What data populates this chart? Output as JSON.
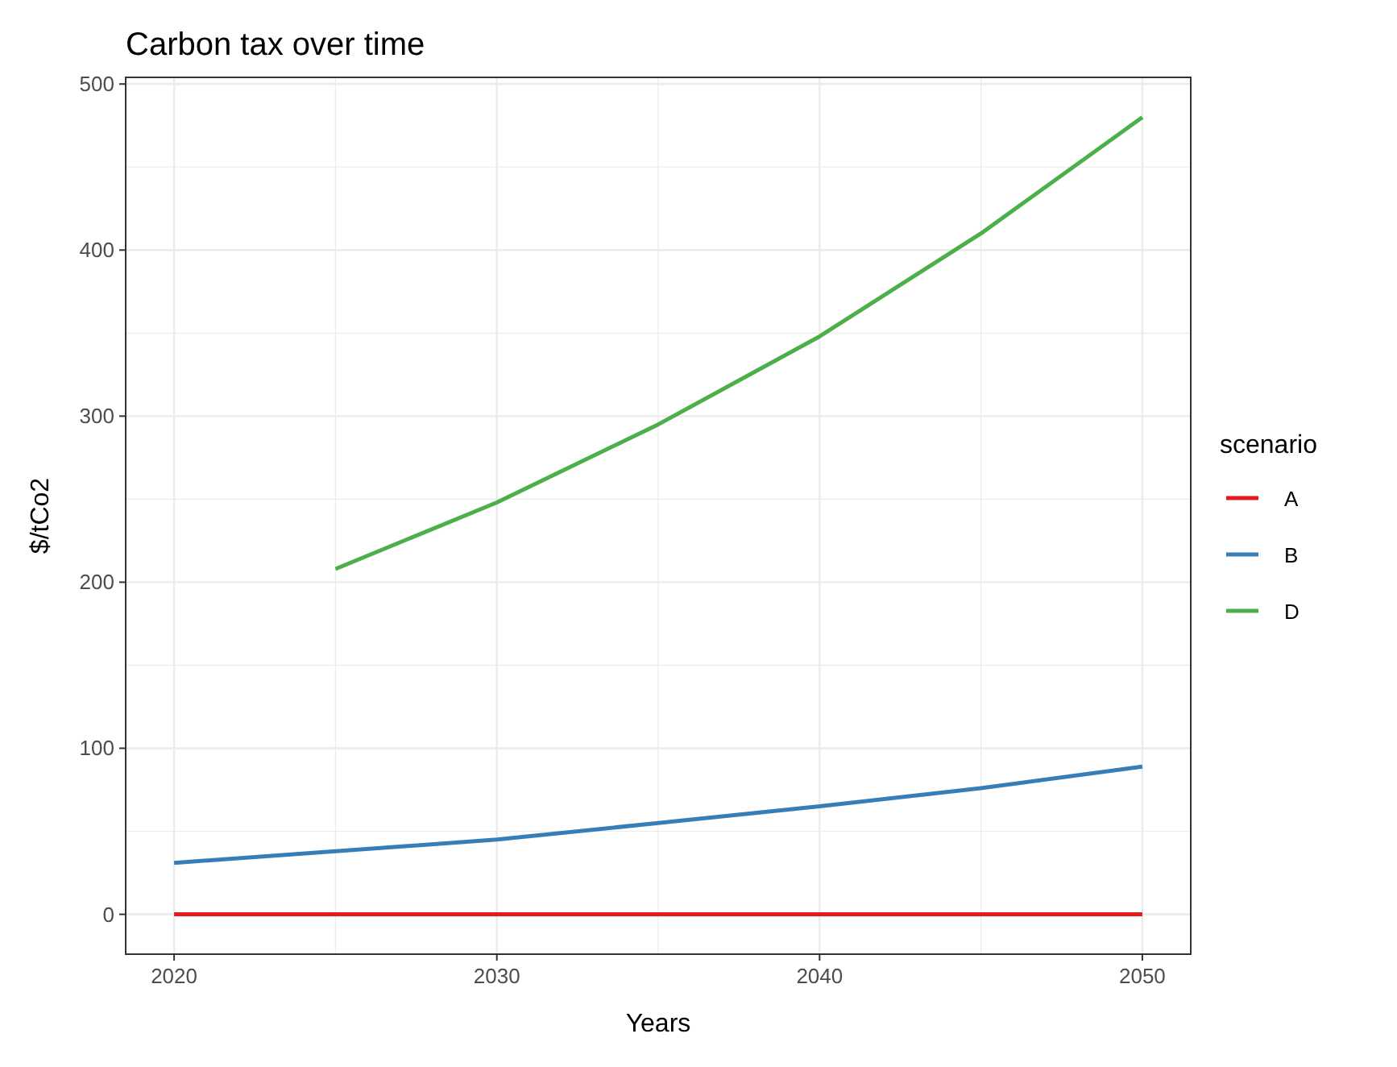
{
  "chart_data": {
    "type": "line",
    "title": "Carbon tax over time",
    "xlabel": "Years",
    "ylabel": "$/tCo2",
    "legend_title": "scenario",
    "x": [
      2020,
      2025,
      2030,
      2035,
      2040,
      2045,
      2050
    ],
    "series": [
      {
        "name": "A",
        "color": "#e41a1c",
        "values": [
          0,
          0,
          0,
          0,
          0,
          0,
          0
        ]
      },
      {
        "name": "B",
        "color": "#377eb8",
        "values": [
          31,
          38,
          45,
          55,
          65,
          76,
          89
        ]
      },
      {
        "name": "D",
        "color": "#4daf4a",
        "values": [
          null,
          208,
          248,
          295,
          348,
          410,
          480
        ]
      }
    ],
    "xlim": [
      2018.5,
      2051.5
    ],
    "xticks": [
      2020,
      2030,
      2040,
      2050
    ],
    "ylim": [
      -24,
      504
    ],
    "yticks": [
      0,
      100,
      200,
      300,
      400,
      500
    ],
    "grid": true,
    "legend": "right",
    "marker": "none",
    "line_style": "solid"
  }
}
